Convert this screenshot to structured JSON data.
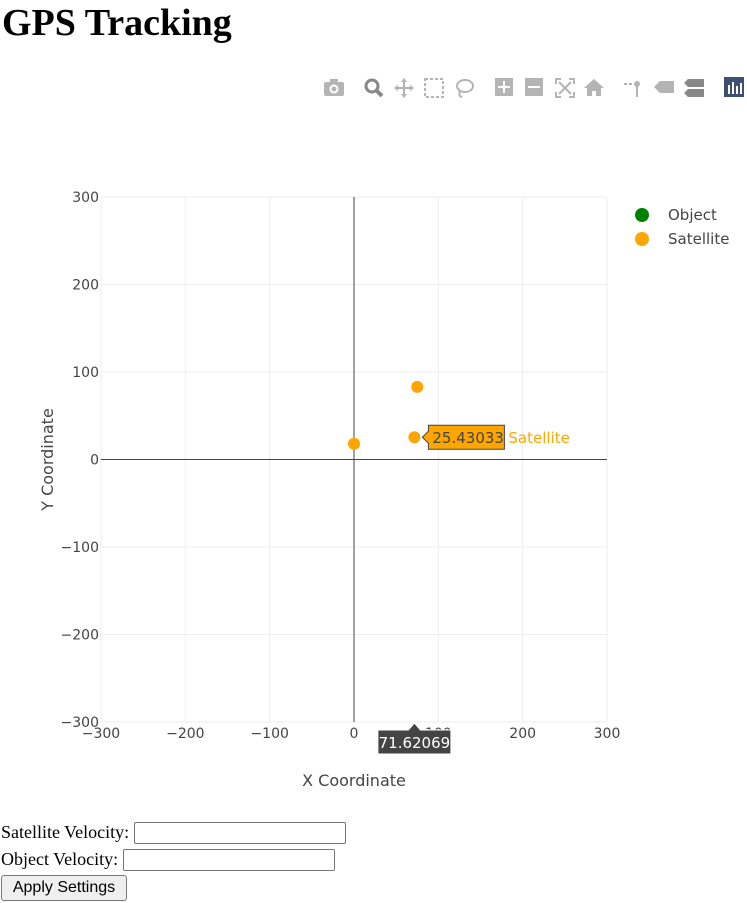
{
  "page_title": "GPS Tracking",
  "modebar": {
    "icons": [
      "camera-icon",
      "zoom-icon",
      "pan-icon",
      "box-select-icon",
      "lasso-select-icon",
      "zoom-in-icon",
      "zoom-out-icon",
      "autoscale-icon",
      "reset-axes-icon",
      "spike-lines-icon",
      "hover-closest-icon",
      "hover-compare-icon",
      "plotly-logo-icon"
    ],
    "icon_color": "#b4b4b4",
    "active_color": "#888888",
    "logo_color": "#3f4f75"
  },
  "chart_data": {
    "type": "scatter",
    "xlabel": "X Coordinate",
    "ylabel": "Y Coordinate",
    "xlim": [
      -300,
      300
    ],
    "ylim": [
      -300,
      300
    ],
    "xticks": [
      -300,
      -200,
      -100,
      0,
      100,
      200,
      300
    ],
    "yticks": [
      -300,
      -200,
      -100,
      0,
      100,
      200,
      300
    ],
    "xtick_labels": [
      "−300",
      "−200",
      "−100",
      "0",
      "100",
      "200",
      "300"
    ],
    "ytick_labels": [
      "−300",
      "−200",
      "−100",
      "0",
      "100",
      "200",
      "300"
    ],
    "grid": true,
    "zeroline": true,
    "legend_position": "top-right",
    "series": [
      {
        "name": "Object",
        "color": "#008000",
        "points": []
      },
      {
        "name": "Satellite",
        "color": "#ffa500",
        "points": [
          {
            "x": 0,
            "y": 18
          },
          {
            "x": 71.62069,
            "y": 25.43033
          },
          {
            "x": 75,
            "y": 83
          }
        ]
      }
    ],
    "hover": {
      "series": "Satellite",
      "x": 71.62069,
      "y": 25.43033,
      "x_label": "71.62069",
      "y_label": "25.43033",
      "series_label": "Satellite"
    }
  },
  "form": {
    "satellite_velocity_label": "Satellite Velocity:",
    "satellite_velocity_value": "",
    "object_velocity_label": "Object Velocity:",
    "object_velocity_value": "",
    "apply_button_label": "Apply Settings"
  }
}
